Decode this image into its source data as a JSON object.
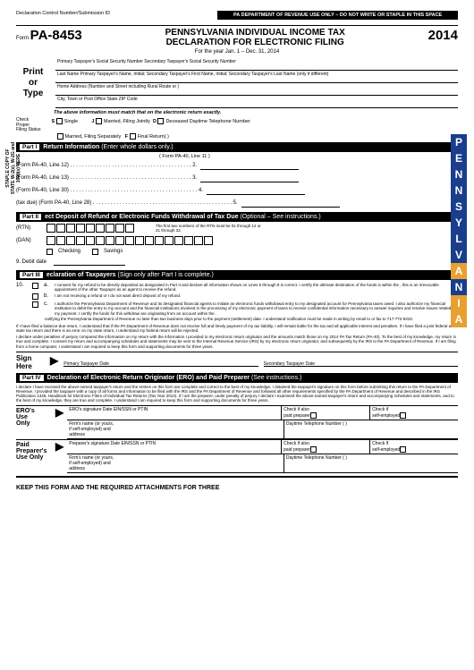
{
  "header": {
    "dcn": "Declaration Control Number/Submission ID",
    "top_banner": "PA DEPARTMENT OF REVENUE USE ONLY – DO NOT WRITE OR STAPLE IN THIS SPACE",
    "form_word": "Form",
    "form_no": "PA-8453",
    "title_l1": "PENNSYLVANIA INDIVIDUAL INCOME TAX",
    "title_l2": "DECLARATION FOR ELECTRONIC FILING",
    "year": "2014",
    "period": "For the year Jan. 1 – Dec. 31, 2014",
    "print_or_type": "Print\nor\nType",
    "ssn_line": "Primary Taxpayer's Social Security Number Secondary Taxpayer's Social Security Number",
    "name_line": "Last Name Primary Taxpayer's Name, Initial; Secondary Taxpayer's First Name, Initial; Secondary Taxpayer's Last Name (only if different)",
    "addr_line": "Home Address (Number and Street including Rural Route or )",
    "city_line": "City, Town or Post Office State ZIP Code",
    "must_match": "The above information must match that on the electronic return exactly."
  },
  "filing": {
    "check_proper": "Check\nProper\nFiling Status",
    "s": "S",
    "single": "Single",
    "j": "J",
    "mfj": "Married, Filing Jointly",
    "d": "D",
    "deceased": "Deceased Daytime Telephone Number",
    "mfs": "Married, Filing Separately",
    "f": "F",
    "final": "Final Return(        )"
  },
  "part1": {
    "bar": "Return Information",
    "bar_note": "(Enter whole dollars only.)",
    "ref": "( Form PA-40, Line 11 )",
    "l1": "(Form PA-40, Line 12) . . . . . . . . . . . . . . . . . . . . . . . . . . . . . . . . . . . . . . . . . 2.",
    "l2": "(Form PA-40, Line 13) . . . . . . . . . . . . . . . . . . . . . . . . . . . . . . . . . . . . . . . . . 3.",
    "l3": "(Form PA-40, Line 30) . . . . . . . . . . . . . . . . . . . . . . . . . . . . . . . . . . . . . . . . . . . 4.",
    "l4": "(tax due) (Form PA-40, Line 28) . . . . . . . . . . . . . . . . . . . . . . . . . . . . . . . . . . . . . . . . . . . . . . . 5."
  },
  "part2": {
    "bar": "ect Deposit of Refund or Electronic Funds Withdrawal of Tax Due",
    "bar_note": "(Optional – See instructions.)",
    "rtn": "(RTN)",
    "dan": "(DAN)",
    "rtn_note": "The first two numbers of the RTN must be 01 through 12 or 21 through 32.",
    "checking": "Checking",
    "savings": "Savings",
    "debit": "9. Debit date"
  },
  "part3": {
    "bar": "eclaration of Taxpayers",
    "bar_note": "(Sign only after Part I is complete.)",
    "l10": "10.",
    "a": "a.",
    "a_text": "I consent for my refund to be directly deposited as designated in Part II and declare all information shown on Lines 6 through 8 is correct. I certify the ultimate destination of the funds is within the , this is an irrevocable appointment of the other Taxpayer as an agent to receive the refund.",
    "b": "b.",
    "b_text": "I am not receiving a refund or I do not want direct deposit of my refund.",
    "c": "c.",
    "c_text": "I authorize the Pennsylvania Department of Revenue and its designated financial agents to initiate an electronic funds withdrawal entry to my designated account for Pennsylvania taxes owed. I also authorize my financial institution to debit the entry to my account and the financial institutions involved in the processing of my electronic payment of taxes to receive confidential information necessary to answer inquiries and resolve issues related to my payment. I certify the funds for this withdraw are originating from an account within the .",
    "notify": "notifying the Pennsylvania Department of Revenue no later than two business days prior to the payment (settlement) date. I understand notification must be made in writing by email to  or fax to 717-772-9310.",
    "para1": "If I have filed a balance-due return, I understand that if the PA Department of Revenue does not receive full and timely payment of my tax liability, I will remain liable for the tax and all applicable interest and penalties. If I have filed a joint federal and state tax return and there is an error on my state return, I understand my federal return will be rejected.",
    "para2": "I declare under penalties of perjury compared the information on my return with the information I provided to my electronic return originator and the amounts match those on my 2014 PA Tax Return (PA-40). To the best of my knowledge, my return is true and complete. I consent my return and accompanying schedules and statements may be sent to the Internal Revenue Service (IRS) by my electronic return originator, and subsequently by the IRS to the PA Department of Revenue. If I am filing from a home computer, I understand I am required to keep this form and supporting documents for three years."
  },
  "sign": {
    "label": "Sign\nHere",
    "primary": "Primary Taxpayer Date",
    "secondary": "Secondary Taxpayer Date"
  },
  "part4": {
    "bar": "Declaration of Electronic Return Originator (ERO) and Paid Preparer",
    "bar_note": "(See instructions.)",
    "decl": "I declare I have received the above-named taxpayer's return and the entries on this form are complete and correct to the best of my knowledge. I obtained the taxpayer's signature on this form before submitting this return to the PA Department of Revenue. I provided the taxpayer with a copy of all forms and information to be filed with the IRS and the PA Department of Revenue and followed all other requirements specified by the PA Department of Revenue and described in the IRS Publication 1345, Handbook for Electronic Filers of Individual Tax Returns (Tax Year 2014). If I am the preparer, under penalty of perjury I declare I examined the above-named taxpayer's return and accompanying schedules and statements, and to the best of my knowledge, they are true and complete. I understand I am required to keep this form and supporting documents for three years."
  },
  "ero": {
    "label": "ERO's\nUse\nOnly",
    "sig": "ERO's signature Date EIN/SSN or PTIN",
    "check_also": "Check if also\npaid preparer",
    "check_self": "Check if\nself-employed",
    "firm": "Firm's name (or yours,\nif self-employed) and\naddress",
    "phone": "Daytime Telephone Number (            )"
  },
  "prep": {
    "label": "Paid\nPreparer's\nUse Only",
    "sig": "Preparer's signature Date EIN/SSN or PTIN",
    "check_also": "Check if also\npaid preparer",
    "check_self": "Check if\nself-employed",
    "firm": "Firm's name (or yours,\nif self-employed) and\naddress",
    "phone": "Daytime Telephone Number (            )"
  },
  "footer": "KEEP THIS FORM AND THE REQUIRED ATTACHMENTS FOR THREE",
  "staple": "STAPLE COPY OF STATE W-2(s), W-2G and 1099(s) HERE",
  "vstrip": {
    "letters": [
      "P",
      "E",
      "N",
      "N",
      "S",
      "Y",
      "L",
      "V",
      "A",
      "N",
      "I",
      "A"
    ],
    "colors": [
      "#1a3e8c",
      "#1a3e8c",
      "#1a3e8c",
      "#1a3e8c",
      "#1a3e8c",
      "#1a3e8c",
      "#1a3e8c",
      "#1a3e8c",
      "#e8a030",
      "#1a3e8c",
      "#e8a030",
      "#e8a030"
    ]
  }
}
